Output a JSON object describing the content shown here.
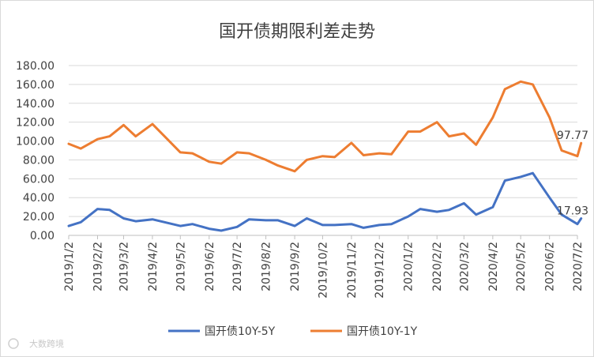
{
  "chart_data": {
    "type": "line",
    "title": "国开债期限利差走势",
    "xlabel": "",
    "ylabel": "",
    "ylim": [
      0,
      180
    ],
    "y_ticks": [
      "0.00",
      "20.00",
      "40.00",
      "60.00",
      "80.00",
      "100.00",
      "120.00",
      "140.00",
      "160.00",
      "180.00"
    ],
    "x_tick_labels": [
      "2019/1/2",
      "2019/2/2",
      "2019/3/2",
      "2019/4/2",
      "2019/5/2",
      "2019/6/2",
      "2019/7/2",
      "2019/8/2",
      "2019/9/2",
      "2019/10/2",
      "2019/11/2",
      "2019/12/2",
      "2020/1/2",
      "2020/2/2",
      "2020/3/2",
      "2020/4/2",
      "2020/5/2",
      "2020/6/2",
      "2020/7/2"
    ],
    "x": [
      "2019/1/2",
      "2019/1/15",
      "2019/2/2",
      "2019/2/15",
      "2019/3/2",
      "2019/3/15",
      "2019/4/2",
      "2019/4/15",
      "2019/5/2",
      "2019/5/15",
      "2019/6/2",
      "2019/6/15",
      "2019/7/2",
      "2019/7/15",
      "2019/8/2",
      "2019/8/15",
      "2019/9/2",
      "2019/9/15",
      "2019/10/2",
      "2019/10/15",
      "2019/11/2",
      "2019/11/15",
      "2019/12/2",
      "2019/12/15",
      "2020/1/2",
      "2020/1/15",
      "2020/2/2",
      "2020/2/15",
      "2020/3/2",
      "2020/3/15",
      "2020/4/2",
      "2020/4/15",
      "2020/5/2",
      "2020/5/15",
      "2020/6/2",
      "2020/6/15",
      "2020/7/2",
      "2020/7/6"
    ],
    "series": [
      {
        "name": "国开债10Y-5Y",
        "color": "#4472c4",
        "values": [
          10,
          14,
          28,
          27,
          18,
          15,
          17,
          14,
          10,
          12,
          7,
          5,
          9,
          17,
          16,
          16,
          10,
          18,
          11,
          11,
          12,
          8,
          11,
          12,
          20,
          28,
          25,
          27,
          34,
          22,
          30,
          58,
          62,
          66,
          40,
          22,
          12,
          17.93
        ]
      },
      {
        "name": "国开债10Y-1Y",
        "color": "#ed7d31",
        "values": [
          97,
          92,
          102,
          105,
          117,
          105,
          118,
          105,
          88,
          87,
          78,
          76,
          88,
          87,
          80,
          74,
          68,
          80,
          84,
          83,
          98,
          85,
          87,
          86,
          110,
          110,
          120,
          105,
          108,
          96,
          125,
          155,
          163,
          160,
          125,
          90,
          84,
          97.77
        ]
      }
    ],
    "annotations": [
      {
        "series": "国开债10Y-1Y",
        "label": "97.77"
      },
      {
        "series": "国开债10Y-5Y",
        "label": "17.93"
      }
    ],
    "legend_position": "bottom",
    "grid": "horizontal",
    "watermark": "大数跨境"
  }
}
